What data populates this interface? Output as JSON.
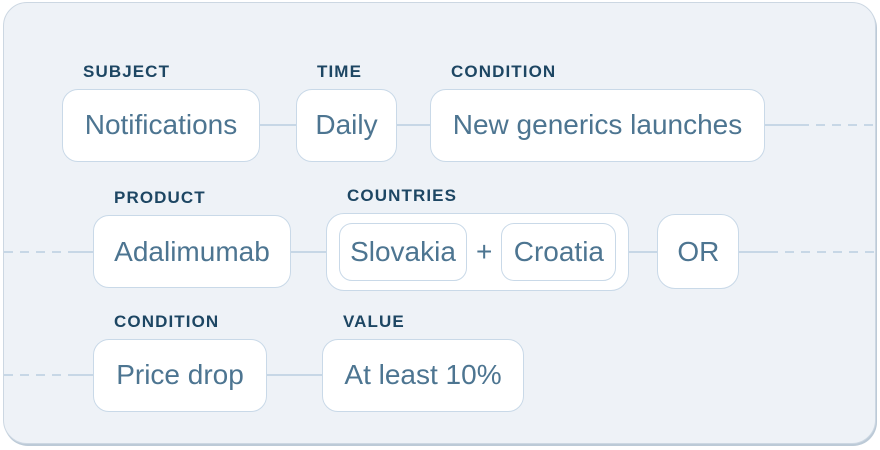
{
  "rows": [
    {
      "nodes": [
        {
          "label": "SUBJECT",
          "value": "Notifications"
        },
        {
          "label": "TIME",
          "value": "Daily"
        },
        {
          "label": "CONDITION",
          "value": "New generics launches"
        }
      ]
    },
    {
      "nodes": [
        {
          "label": "PRODUCT",
          "value": "Adalimumab"
        },
        {
          "label": "COUNTRIES",
          "separator": "+",
          "items": [
            {
              "value": "Slovakia"
            },
            {
              "value": "Croatia"
            }
          ]
        },
        {
          "value": "OR"
        }
      ]
    },
    {
      "nodes": [
        {
          "label": "CONDITION",
          "value": "Price drop"
        },
        {
          "label": "VALUE",
          "value": "At least 10%"
        }
      ]
    }
  ],
  "colors": {
    "card_background": "#eef2f7",
    "card_border": "#ccd7e2",
    "chip_background": "#ffffff",
    "chip_border": "#c9d9e8",
    "chip_text": "#4d7591",
    "label_text": "#1d4663",
    "connector": "#c7d7e6"
  }
}
